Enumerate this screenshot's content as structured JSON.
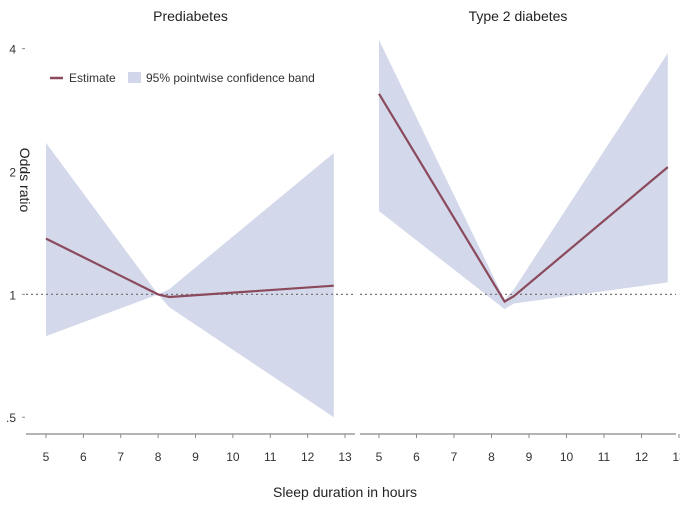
{
  "chart_data": {
    "type": "line",
    "xlabel": "Sleep duration in hours",
    "ylabel": "Odds ratio",
    "y_scale": "log",
    "yticks": [
      0.5,
      1,
      2,
      4
    ],
    "ytick_labels": [
      ".5",
      "1",
      "2",
      "4"
    ],
    "xticks": [
      5,
      6,
      7,
      8,
      9,
      10,
      11,
      12,
      13
    ],
    "xlim": [
      4.9,
      13
    ],
    "ylim": [
      0.46,
      4.2
    ],
    "reference_line": 1,
    "legend": {
      "position": "top-left",
      "entries": [
        {
          "label": "Estimate",
          "kind": "line",
          "color": "#8a4a5c"
        },
        {
          "label": "95% pointwise confidence band",
          "kind": "band",
          "color": "#d2d6ea"
        }
      ]
    },
    "colors": {
      "estimate": "#8a4a5c",
      "band": "#d2d6ea",
      "reference": "#777777",
      "axis": "#888888"
    },
    "panels": [
      {
        "title": "Prediabetes",
        "x": [
          5,
          8,
          8.3,
          12.7
        ],
        "estimate": [
          1.37,
          1.0,
          0.985,
          1.05
        ],
        "lower": [
          0.79,
          1.0,
          0.93,
          0.5
        ],
        "upper": [
          2.35,
          1.0,
          1.03,
          2.22
        ]
      },
      {
        "title": "Type 2 diabetes",
        "x": [
          5,
          8.35,
          8.6,
          12.7
        ],
        "estimate": [
          3.1,
          0.96,
          0.99,
          2.05
        ],
        "lower": [
          1.6,
          0.92,
          0.95,
          1.07
        ],
        "upper": [
          4.2,
          0.97,
          1.03,
          3.9
        ]
      }
    ]
  }
}
